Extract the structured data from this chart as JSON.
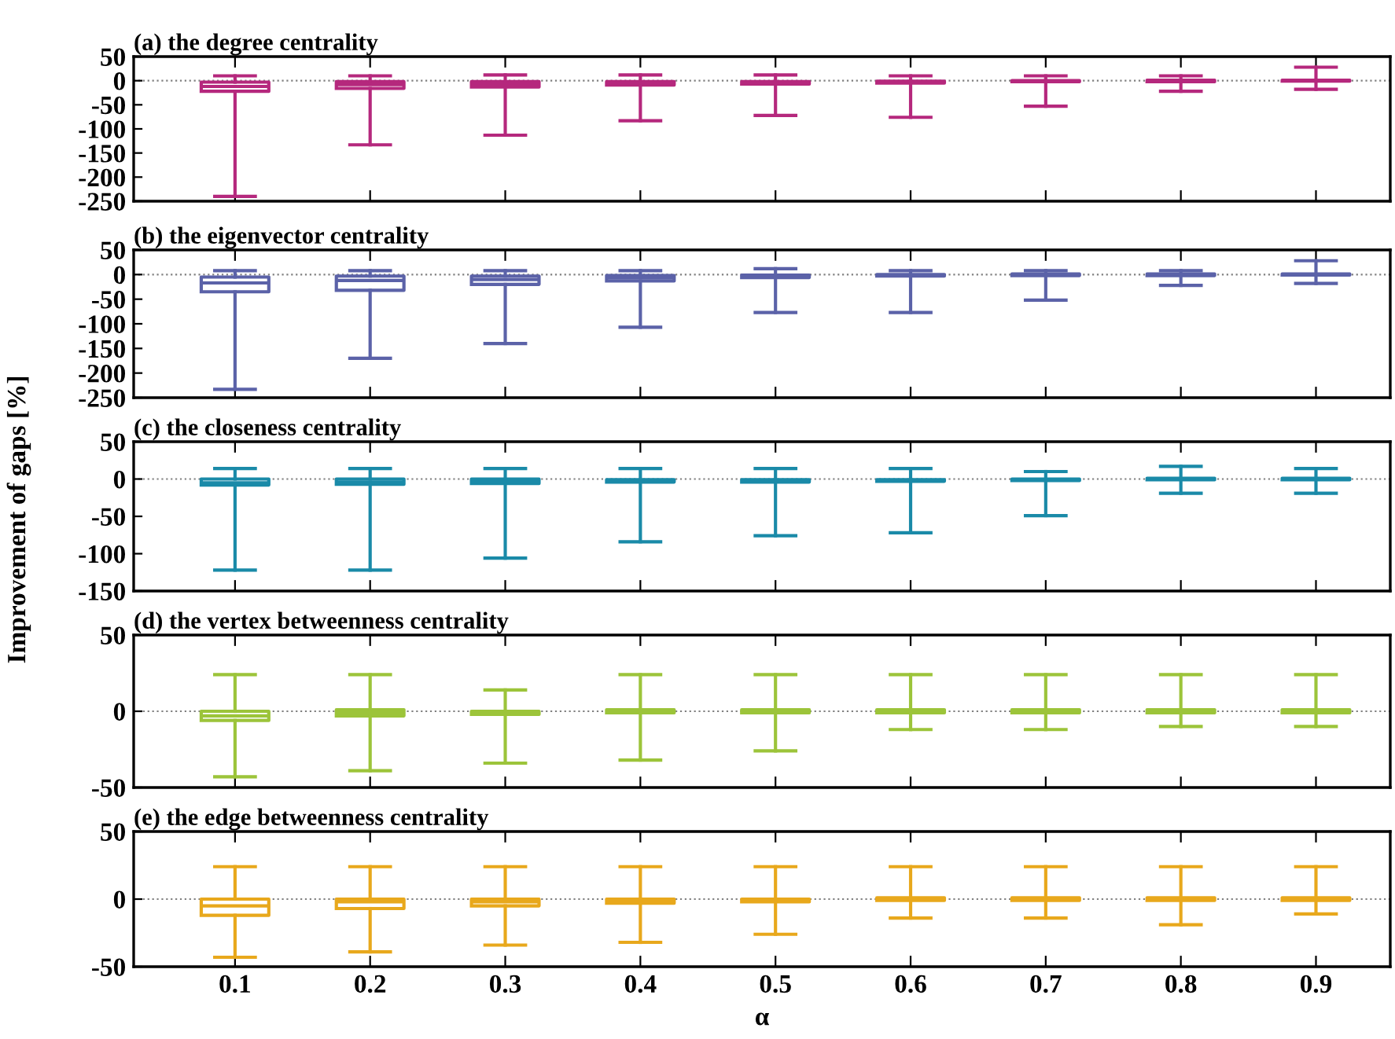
{
  "chart_data": [
    {
      "type": "box",
      "title": "(a) the degree centrality",
      "categories": [
        "0.1",
        "0.2",
        "0.3",
        "0.4",
        "0.5",
        "0.6",
        "0.7",
        "0.8",
        "0.9"
      ],
      "ylim": [
        -250,
        50
      ],
      "yticks": [
        -250,
        -200,
        -150,
        -100,
        -50,
        0,
        50
      ],
      "tick_labels": "y",
      "grid": false,
      "color": "#b5287d",
      "ref_lines": [
        {
          "axis": "y",
          "value": 0,
          "label": null,
          "line_style": "dotted",
          "color": "#808080"
        }
      ],
      "boxes": [
        {
          "low": -240,
          "q1": -22,
          "median": -12,
          "q3": -3,
          "high": 10
        },
        {
          "low": -133,
          "q1": -16,
          "median": -8,
          "q3": -2,
          "high": 10
        },
        {
          "low": -113,
          "q1": -13,
          "median": -7,
          "q3": -2,
          "high": 12
        },
        {
          "low": -83,
          "q1": -9,
          "median": -5,
          "q3": -2,
          "high": 12
        },
        {
          "low": -72,
          "q1": -7,
          "median": -4,
          "q3": -2,
          "high": 12
        },
        {
          "low": -76,
          "q1": -5,
          "median": -3,
          "q3": -1,
          "high": 10
        },
        {
          "low": -53,
          "q1": -2,
          "median": -1,
          "q3": 0,
          "high": 10
        },
        {
          "low": -22,
          "q1": -2,
          "median": 0,
          "q3": 1,
          "high": 10
        },
        {
          "low": -18,
          "q1": -1,
          "median": 0,
          "q3": 1,
          "high": 28
        }
      ]
    },
    {
      "type": "box",
      "title": "(b) the eigenvector centrality",
      "categories": [
        "0.1",
        "0.2",
        "0.3",
        "0.4",
        "0.5",
        "0.6",
        "0.7",
        "0.8",
        "0.9"
      ],
      "ylim": [
        -250,
        50
      ],
      "yticks": [
        -250,
        -200,
        -150,
        -100,
        -50,
        0,
        50
      ],
      "tick_labels": "y",
      "grid": false,
      "color": "#5b62a8",
      "ref_lines": [
        {
          "axis": "y",
          "value": 0,
          "label": null,
          "line_style": "dotted",
          "color": "#808080"
        }
      ],
      "boxes": [
        {
          "low": -233,
          "q1": -35,
          "median": -17,
          "q3": -5,
          "high": 8
        },
        {
          "low": -170,
          "q1": -32,
          "median": -12,
          "q3": -3,
          "high": 8
        },
        {
          "low": -140,
          "q1": -20,
          "median": -10,
          "q3": -3,
          "high": 8
        },
        {
          "low": -107,
          "q1": -13,
          "median": -7,
          "q3": -2,
          "high": 8
        },
        {
          "low": -77,
          "q1": -6,
          "median": -4,
          "q3": -1,
          "high": 12
        },
        {
          "low": -77,
          "q1": -3,
          "median": -2,
          "q3": 0,
          "high": 8
        },
        {
          "low": -52,
          "q1": -2,
          "median": 0,
          "q3": 1,
          "high": 8
        },
        {
          "low": -22,
          "q1": -2,
          "median": 0,
          "q3": 1,
          "high": 8
        },
        {
          "low": -18,
          "q1": -1,
          "median": 0,
          "q3": 1,
          "high": 28
        }
      ]
    },
    {
      "type": "box",
      "title": "(c) the closeness centrality",
      "ylabel": "Improvement of gaps [%]",
      "categories": [
        "0.1",
        "0.2",
        "0.3",
        "0.4",
        "0.5",
        "0.6",
        "0.7",
        "0.8",
        "0.9"
      ],
      "ylim": [
        -150,
        50
      ],
      "yticks": [
        -150,
        -100,
        -50,
        0,
        50
      ],
      "tick_labels": "y",
      "grid": false,
      "color": "#1a8aa8",
      "ref_lines": [
        {
          "axis": "y",
          "value": 0,
          "label": null,
          "line_style": "dotted",
          "color": "#808080"
        }
      ],
      "boxes": [
        {
          "low": -122,
          "q1": -8,
          "median": -5,
          "q3": 0,
          "high": 14
        },
        {
          "low": -122,
          "q1": -7,
          "median": -4,
          "q3": 0,
          "high": 14
        },
        {
          "low": -106,
          "q1": -6,
          "median": -3,
          "q3": 0,
          "high": 14
        },
        {
          "low": -84,
          "q1": -4,
          "median": -3,
          "q3": -1,
          "high": 14
        },
        {
          "low": -76,
          "q1": -4,
          "median": -2,
          "q3": -1,
          "high": 14
        },
        {
          "low": -72,
          "q1": -3,
          "median": -2,
          "q3": -1,
          "high": 14
        },
        {
          "low": -49,
          "q1": -2,
          "median": -1,
          "q3": 0,
          "high": 10
        },
        {
          "low": -19,
          "q1": -1,
          "median": 0,
          "q3": 1,
          "high": 17
        },
        {
          "low": -19,
          "q1": -1,
          "median": 0,
          "q3": 1,
          "high": 14
        }
      ]
    },
    {
      "type": "box",
      "title": "(d) the vertex betweenness centrality",
      "categories": [
        "0.1",
        "0.2",
        "0.3",
        "0.4",
        "0.5",
        "0.6",
        "0.7",
        "0.8",
        "0.9"
      ],
      "ylim": [
        -50,
        50
      ],
      "yticks": [
        -50,
        0,
        50
      ],
      "tick_labels": "y",
      "grid": false,
      "color": "#9cc43a",
      "ref_lines": [
        {
          "axis": "y",
          "value": 0,
          "label": null,
          "line_style": "dotted",
          "color": "#808080"
        }
      ],
      "boxes": [
        {
          "low": -43,
          "q1": -6,
          "median": -3,
          "q3": 0,
          "high": 24
        },
        {
          "low": -39,
          "q1": -3,
          "median": -1,
          "q3": 1,
          "high": 24
        },
        {
          "low": -34,
          "q1": -2,
          "median": -1,
          "q3": 0,
          "high": 14
        },
        {
          "low": -32,
          "q1": -1,
          "median": 0,
          "q3": 1,
          "high": 24
        },
        {
          "low": -26,
          "q1": -1,
          "median": 0,
          "q3": 1,
          "high": 24
        },
        {
          "low": -12,
          "q1": -1,
          "median": 0,
          "q3": 1,
          "high": 24
        },
        {
          "low": -12,
          "q1": -1,
          "median": 0,
          "q3": 1,
          "high": 24
        },
        {
          "low": -10,
          "q1": -1,
          "median": 0,
          "q3": 1,
          "high": 24
        },
        {
          "low": -10,
          "q1": -1,
          "median": 0,
          "q3": 1,
          "high": 24
        }
      ]
    },
    {
      "type": "box",
      "title": "(e) the edge betweenness centrality",
      "xlabel": "α",
      "categories": [
        "0.1",
        "0.2",
        "0.3",
        "0.4",
        "0.5",
        "0.6",
        "0.7",
        "0.8",
        "0.9"
      ],
      "ylim": [
        -50,
        50
      ],
      "yticks": [
        -50,
        0,
        50
      ],
      "grid": false,
      "color": "#e8a81c",
      "ref_lines": [
        {
          "axis": "y",
          "value": 0,
          "label": null,
          "line_style": "dotted",
          "color": "#808080"
        }
      ],
      "boxes": [
        {
          "low": -43,
          "q1": -12,
          "median": -5,
          "q3": 0,
          "high": 24
        },
        {
          "low": -39,
          "q1": -7,
          "median": -2,
          "q3": 0,
          "high": 24
        },
        {
          "low": -34,
          "q1": -5,
          "median": -2,
          "q3": 0,
          "high": 24
        },
        {
          "low": -32,
          "q1": -3,
          "median": -2,
          "q3": 0,
          "high": 24
        },
        {
          "low": -26,
          "q1": -2,
          "median": -1,
          "q3": 0,
          "high": 24
        },
        {
          "low": -14,
          "q1": -1,
          "median": 0,
          "q3": 1,
          "high": 24
        },
        {
          "low": -14,
          "q1": -1,
          "median": 0,
          "q3": 1,
          "high": 24
        },
        {
          "low": -19,
          "q1": -1,
          "median": 0,
          "q3": 1,
          "high": 24
        },
        {
          "low": -11,
          "q1": -1,
          "median": 0,
          "q3": 1,
          "high": 24
        }
      ]
    }
  ]
}
